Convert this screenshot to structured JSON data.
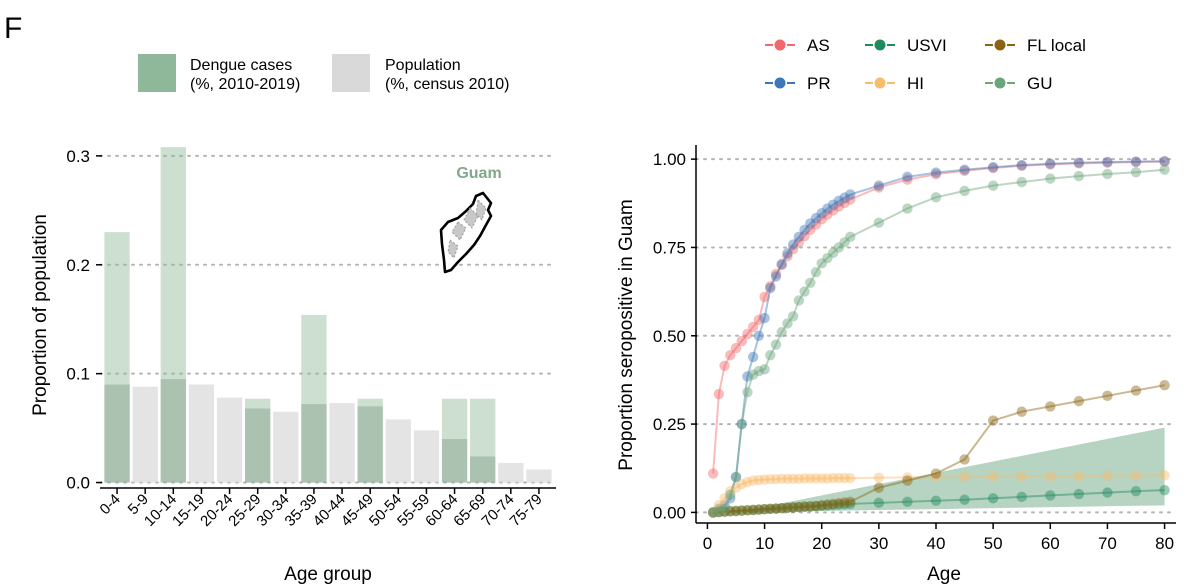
{
  "panel_label": "F",
  "colors": {
    "dengue": "#8fb79a",
    "population": "#d9d9d9",
    "overlap": "#8faa96",
    "grid": "#b5b5b5",
    "guam_label": "#7fa98a",
    "band": "#6fa883"
  },
  "chart_data": [
    {
      "type": "bar",
      "xlabel": "Age group",
      "ylabel": "Proportion of population",
      "ylim": [
        -0.005,
        0.31
      ],
      "yticks": [
        0.0,
        0.1,
        0.2,
        0.3
      ],
      "ytick_labels": [
        "0.0",
        "0.1",
        "0.2",
        "0.3"
      ],
      "grid": "horizontal dotted",
      "annotation": "Guam",
      "legend": {
        "placement": "top",
        "entries": [
          {
            "line1": "Dengue cases",
            "line2": "(%, 2010-2019)"
          },
          {
            "line1": "Population",
            "line2": "(%, census 2010)"
          }
        ]
      },
      "categories": [
        "0-4",
        "5-9",
        "10-14",
        "15-19",
        "20-24",
        "25-29",
        "30-34",
        "35-39",
        "40-44",
        "45-49",
        "50-54",
        "55-59",
        "60-64",
        "65-69",
        "70-74",
        "75-79"
      ],
      "series": [
        {
          "name": "Dengue cases",
          "values": [
            0.23,
            0,
            0.308,
            0,
            0,
            0.077,
            0,
            0.154,
            0,
            0.077,
            0,
            0,
            0.077,
            0.077,
            0,
            0
          ]
        },
        {
          "name": "Population",
          "values": [
            0.09,
            0.088,
            0.095,
            0.09,
            0.078,
            0.068,
            0.065,
            0.072,
            0.073,
            0.07,
            0.058,
            0.048,
            0.04,
            0.024,
            0.018,
            0.012
          ]
        }
      ]
    },
    {
      "type": "line",
      "xlabel": "Age",
      "ylabel": "Proportion seropositive in Guam",
      "xlim": [
        -2,
        82
      ],
      "ylim": [
        -0.03,
        1.04
      ],
      "xticks": [
        0,
        10,
        20,
        30,
        40,
        50,
        60,
        70,
        80
      ],
      "yticks": [
        0,
        0.25,
        0.5,
        0.75,
        1.0
      ],
      "ytick_labels": [
        "0.00",
        "0.25",
        "0.50",
        "0.75",
        "1.00"
      ],
      "grid": "horizontal dotted",
      "legend": {
        "placement": "top",
        "columns": 3
      },
      "x": [
        1,
        2,
        3,
        4,
        5,
        6,
        7,
        8,
        9,
        10,
        11,
        12,
        13,
        14,
        15,
        16,
        17,
        18,
        19,
        20,
        21,
        22,
        23,
        24,
        25,
        30,
        35,
        40,
        45,
        50,
        55,
        60,
        65,
        70,
        75,
        80
      ],
      "series": [
        {
          "name": "AS",
          "color": "#f1696b",
          "values": [
            0.11,
            0.335,
            0.415,
            0.445,
            0.465,
            0.485,
            0.505,
            0.525,
            0.545,
            0.61,
            0.64,
            0.675,
            0.7,
            0.725,
            0.745,
            0.765,
            0.782,
            0.8,
            0.815,
            0.83,
            0.843,
            0.855,
            0.866,
            0.876,
            0.886,
            0.92,
            0.942,
            0.957,
            0.967,
            0.975,
            0.981,
            0.985,
            0.988,
            0.99,
            0.992,
            0.993
          ]
        },
        {
          "name": "PR",
          "color": "#3d77b9",
          "values": [
            0,
            0.01,
            0.02,
            0.04,
            0.1,
            0.25,
            0.385,
            0.44,
            0.5,
            0.55,
            0.635,
            0.668,
            0.703,
            0.733,
            0.758,
            0.78,
            0.8,
            0.818,
            0.833,
            0.847,
            0.86,
            0.871,
            0.882,
            0.891,
            0.9,
            0.925,
            0.95,
            0.962,
            0.97,
            0.977,
            0.983,
            0.987,
            0.99,
            0.992,
            0.993,
            0.994
          ]
        },
        {
          "name": "USVI",
          "color": "#1f8a5e",
          "values": [
            0,
            0.001,
            0.002,
            0.003,
            0.004,
            0.005,
            0.006,
            0.007,
            0.008,
            0.009,
            0.01,
            0.011,
            0.012,
            0.013,
            0.014,
            0.015,
            0.016,
            0.017,
            0.018,
            0.019,
            0.02,
            0.021,
            0.022,
            0.023,
            0.024,
            0.027,
            0.03,
            0.033,
            0.036,
            0.04,
            0.044,
            0.048,
            0.052,
            0.056,
            0.06,
            0.063
          ]
        },
        {
          "name": "HI",
          "color": "#f6bd6e",
          "values": [
            0,
            0.02,
            0.04,
            0.06,
            0.07,
            0.08,
            0.086,
            0.09,
            0.092,
            0.093,
            0.094,
            0.094,
            0.095,
            0.095,
            0.095,
            0.095,
            0.096,
            0.096,
            0.096,
            0.096,
            0.096,
            0.097,
            0.097,
            0.097,
            0.097,
            0.098,
            0.099,
            0.1,
            0.1,
            0.101,
            0.102,
            0.102,
            0.103,
            0.104,
            0.104,
            0.105
          ]
        },
        {
          "name": "FL local",
          "color": "#8a6412",
          "values": [
            0,
            0.001,
            0.002,
            0.003,
            0.004,
            0.005,
            0.006,
            0.007,
            0.008,
            0.009,
            0.01,
            0.011,
            0.012,
            0.013,
            0.014,
            0.015,
            0.016,
            0.017,
            0.018,
            0.02,
            0.022,
            0.024,
            0.026,
            0.028,
            0.03,
            0.07,
            0.09,
            0.11,
            0.15,
            0.26,
            0.285,
            0.3,
            0.315,
            0.33,
            0.345,
            0.36
          ]
        },
        {
          "name": "GU",
          "color": "#6aa57b",
          "values": [
            0,
            0.005,
            0.01,
            0.05,
            0.1,
            0.25,
            0.34,
            0.39,
            0.4,
            0.405,
            0.445,
            0.475,
            0.51,
            0.535,
            0.555,
            0.6,
            0.625,
            0.65,
            0.68,
            0.705,
            0.72,
            0.735,
            0.75,
            0.765,
            0.78,
            0.82,
            0.86,
            0.892,
            0.91,
            0.925,
            0.935,
            0.945,
            0.952,
            0.958,
            0.963,
            0.97
          ]
        }
      ],
      "band": {
        "x": [
          5,
          80
        ],
        "lower": [
          0.0,
          0.02
        ],
        "upper": [
          0.0,
          0.24
        ]
      }
    }
  ]
}
